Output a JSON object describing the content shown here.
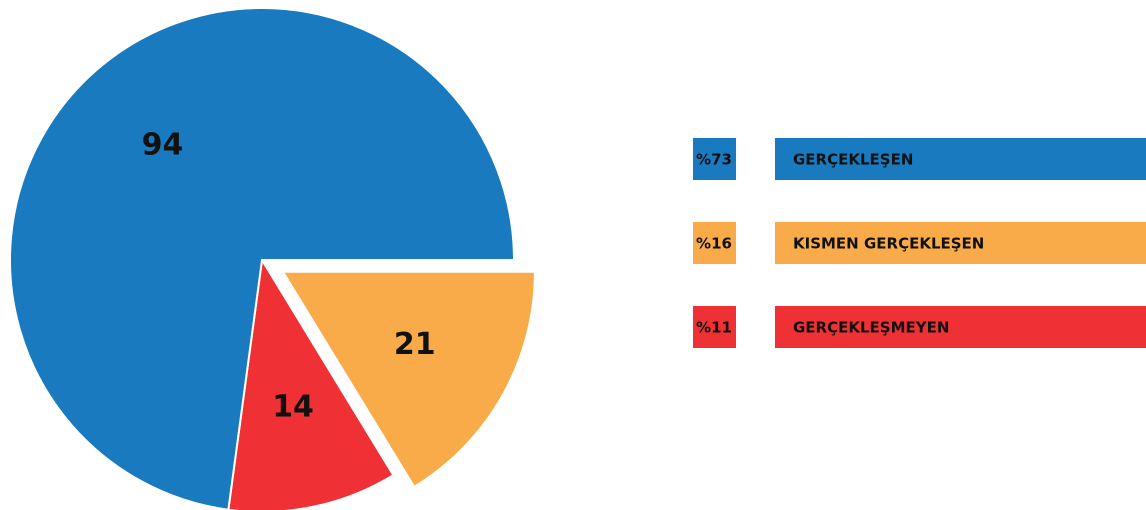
{
  "chart_data": {
    "type": "pie",
    "categories": [
      "GERÇEKLEŞEN",
      "KISMEN GERÇEKLEŞEN",
      "GERÇEKLEŞMEYEN"
    ],
    "values": [
      94,
      21,
      14
    ],
    "percent_labels": [
      "%73",
      "%16",
      "%11"
    ],
    "colors": [
      "#1a7ac0",
      "#f9ab4a",
      "#ef3034"
    ],
    "exploded": [
      false,
      true,
      false
    ]
  }
}
